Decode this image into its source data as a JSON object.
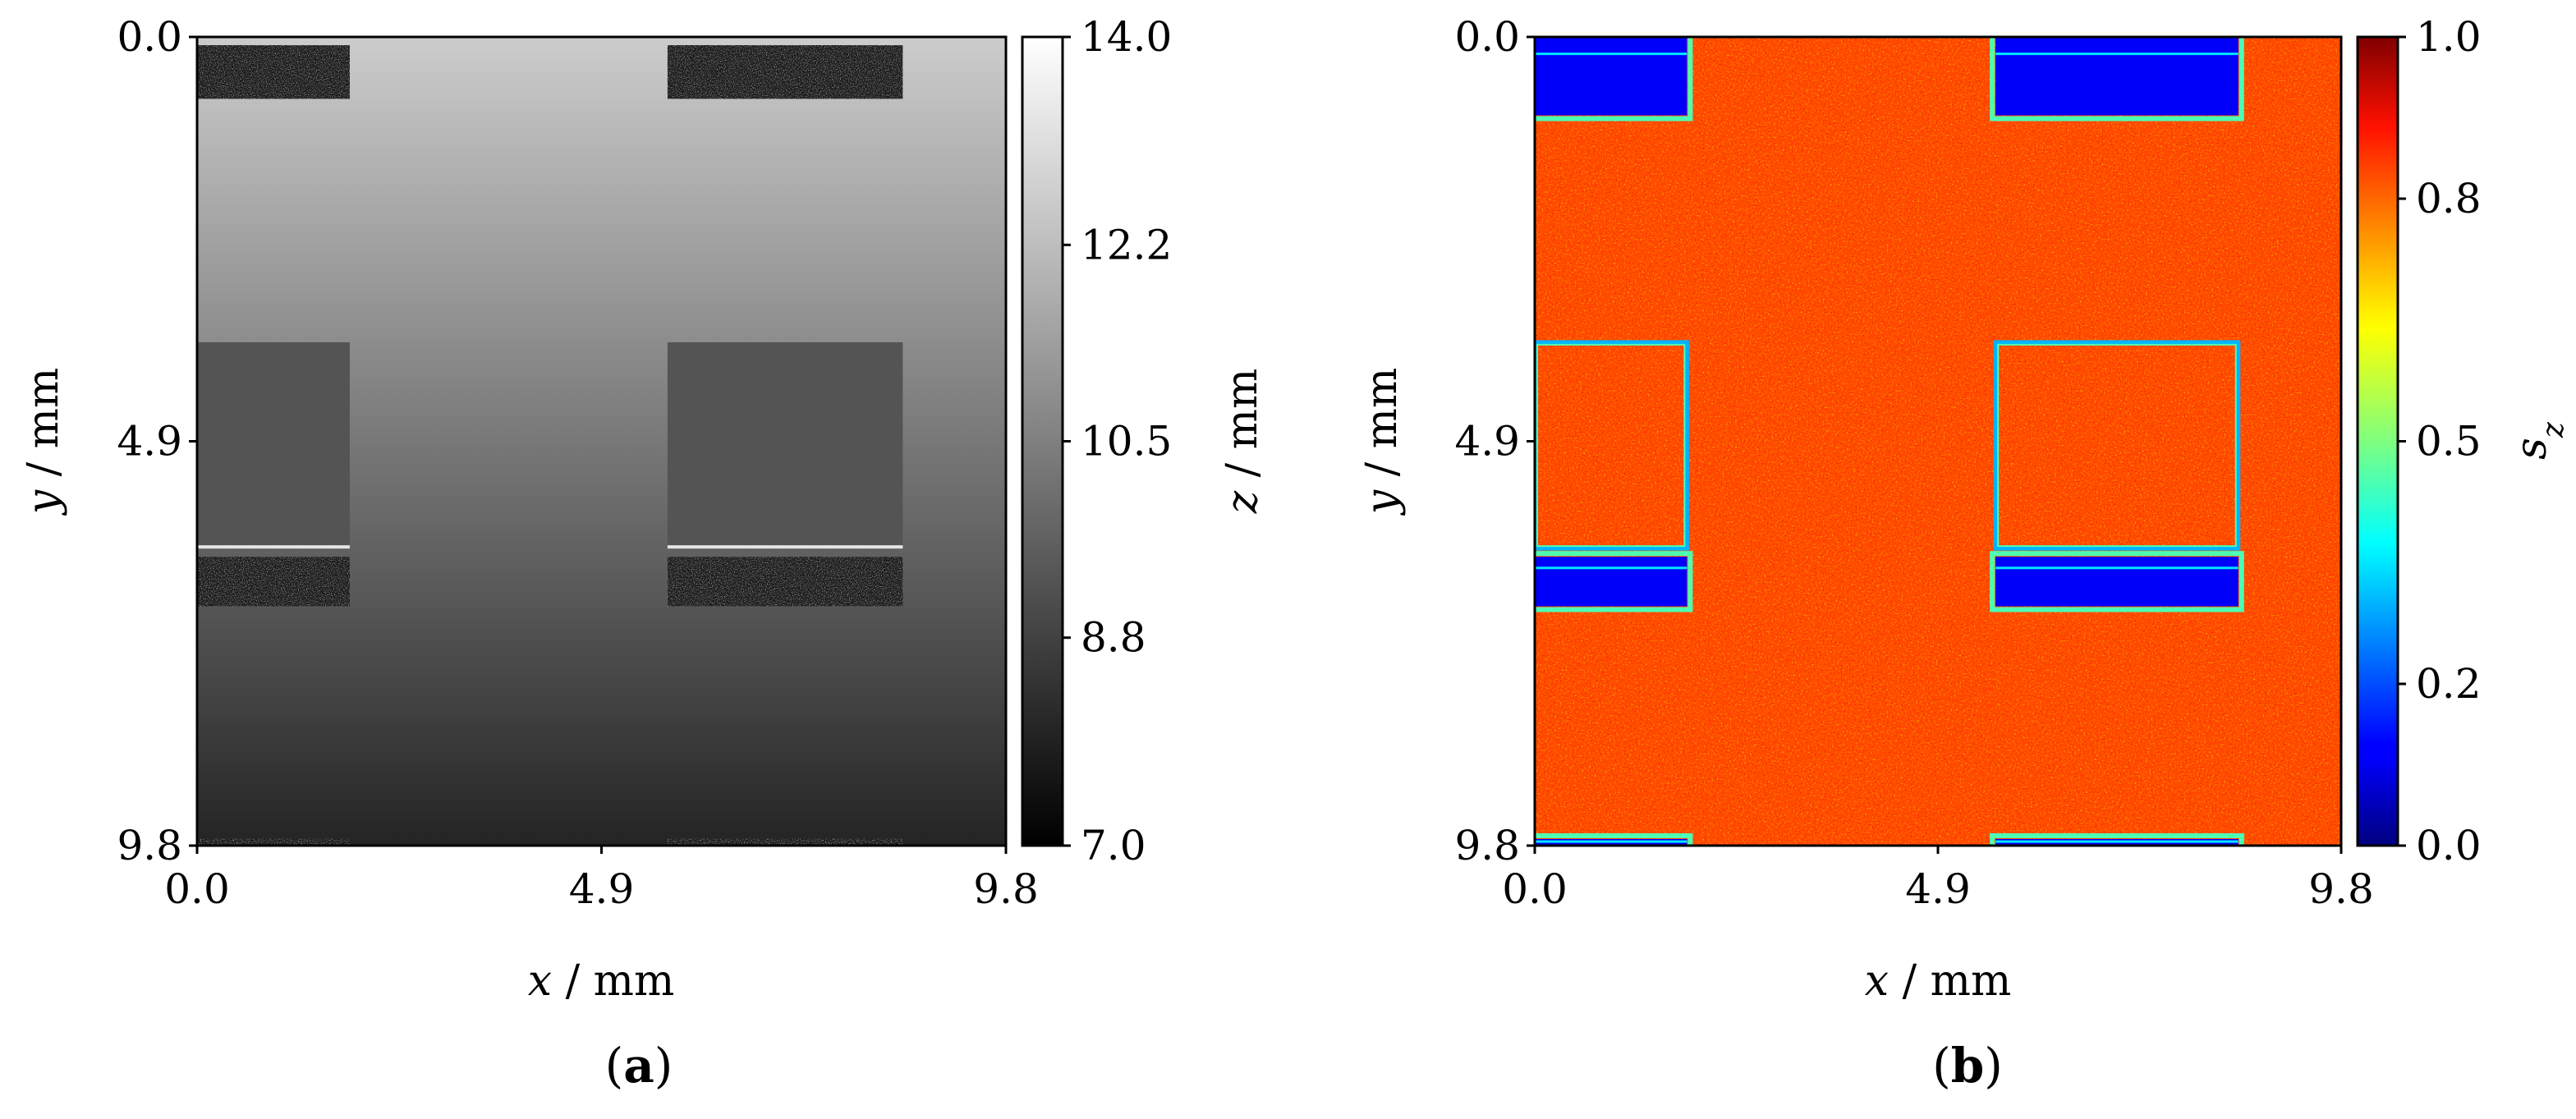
{
  "chart_data": [
    {
      "type": "heatmap",
      "panel_label": "a",
      "x_axis": {
        "var": "x",
        "unit": "mm",
        "range": [
          0.0,
          9.8
        ],
        "ticks": [
          "0.0",
          "4.9",
          "9.8"
        ]
      },
      "y_axis": {
        "var": "y",
        "unit": "mm",
        "range": [
          0.0,
          9.8
        ],
        "ticks": [
          "0.0",
          "4.9",
          "9.8"
        ],
        "inverted": true
      },
      "colorbar": {
        "var": "z",
        "unit": "mm",
        "range": [
          7.0,
          14.0
        ],
        "ticks": [
          "14.0",
          "12.2",
          "10.5",
          "8.8",
          "7.0"
        ],
        "colormap": "gray"
      },
      "field": {
        "background_top": 12.6,
        "background_bottom": 8.0,
        "pocket_value": 9.3,
        "rectangles_mm": [
          {
            "x0": 0.0,
            "x1": 1.85,
            "y0": 0.1,
            "y1": 0.75,
            "kind": "noise"
          },
          {
            "x0": 5.7,
            "x1": 8.55,
            "y0": 0.1,
            "y1": 0.75,
            "kind": "noise"
          },
          {
            "x0": 0.0,
            "x1": 1.85,
            "y0": 3.7,
            "y1": 6.2,
            "kind": "pocket"
          },
          {
            "x0": 5.7,
            "x1": 8.55,
            "y0": 3.7,
            "y1": 6.2,
            "kind": "pocket"
          },
          {
            "x0": 0.0,
            "x1": 1.85,
            "y0": 6.3,
            "y1": 6.9,
            "kind": "noise"
          },
          {
            "x0": 5.7,
            "x1": 8.55,
            "y0": 6.3,
            "y1": 6.9,
            "kind": "noise"
          },
          {
            "x0": 0.0,
            "x1": 1.85,
            "y0": 9.72,
            "y1": 9.8,
            "kind": "noise"
          },
          {
            "x0": 5.7,
            "x1": 8.55,
            "y0": 9.72,
            "y1": 9.8,
            "kind": "noise"
          }
        ]
      }
    },
    {
      "type": "heatmap",
      "panel_label": "b",
      "x_axis": {
        "var": "x",
        "unit": "mm",
        "range": [
          0.0,
          9.8
        ],
        "ticks": [
          "0.0",
          "4.9",
          "9.8"
        ]
      },
      "y_axis": {
        "var": "y",
        "unit": "mm",
        "range": [
          0.0,
          9.8
        ],
        "ticks": [
          "0.0",
          "4.9",
          "9.8"
        ],
        "inverted": true
      },
      "colorbar": {
        "var": "s",
        "subscript": "z",
        "range": [
          0.0,
          1.0
        ],
        "ticks": [
          "1.0",
          "0.8",
          "0.5",
          "0.2",
          "0.0"
        ],
        "colormap": "jet"
      },
      "field": {
        "background_value": 0.87,
        "band_value": 0.12,
        "rectangles_mm": [
          {
            "x0": 0.0,
            "x1": 1.85,
            "y0": 0.0,
            "y1": 0.95,
            "kind": "band"
          },
          {
            "x0": 5.6,
            "x1": 8.55,
            "y0": 0.0,
            "y1": 0.95,
            "kind": "band"
          },
          {
            "x0": 0.0,
            "x1": 1.85,
            "y0": 3.7,
            "y1": 6.2,
            "kind": "outline"
          },
          {
            "x0": 5.6,
            "x1": 8.55,
            "y0": 3.7,
            "y1": 6.2,
            "kind": "outline"
          },
          {
            "x0": 0.0,
            "x1": 1.85,
            "y0": 6.3,
            "y1": 6.9,
            "kind": "band"
          },
          {
            "x0": 5.6,
            "x1": 8.55,
            "y0": 6.3,
            "y1": 6.9,
            "kind": "band"
          },
          {
            "x0": 0.0,
            "x1": 1.85,
            "y0": 9.72,
            "y1": 9.8,
            "kind": "band"
          },
          {
            "x0": 5.6,
            "x1": 8.55,
            "y0": 9.72,
            "y1": 9.8,
            "kind": "band"
          }
        ]
      }
    }
  ],
  "captions": {
    "a": "a",
    "b": "b"
  },
  "labels": {
    "x_var": "x",
    "x_unit": " / mm",
    "y_var": "y",
    "y_unit": " / mm",
    "cb_a_var": "z",
    "cb_a_unit": " / mm",
    "cb_b_var": "s",
    "cb_b_sub": "z"
  }
}
